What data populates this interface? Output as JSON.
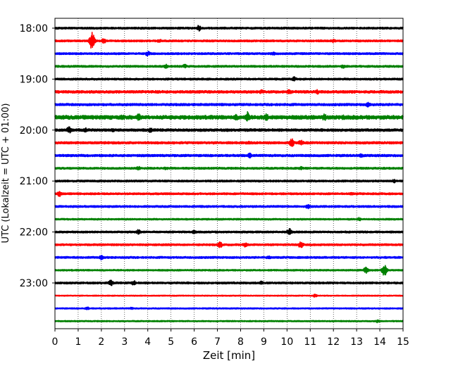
{
  "chart_data": {
    "type": "line",
    "title": "",
    "xlabel": "Zeit  [min]",
    "ylabel": "UTC (Lokalzeit = UTC + 01:00)",
    "xlim": [
      0,
      15
    ],
    "x_ticks": [
      "0",
      "1",
      "2",
      "3",
      "4",
      "5",
      "6",
      "7",
      "8",
      "9",
      "10",
      "11",
      "12",
      "13",
      "14",
      "15"
    ],
    "y_tick_labels": [
      "18:00",
      "19:00",
      "20:00",
      "21:00",
      "22:00",
      "23:00"
    ],
    "vertical_grid": "dotted",
    "series_color_cycle": [
      "#000000",
      "#ff0000",
      "#0000ff",
      "#008000"
    ],
    "traces": [
      {
        "time": "18:00",
        "color": "#000000",
        "amplitude": 0.15,
        "bursts": [
          {
            "x": 6.2,
            "amp": 0.5
          }
        ]
      },
      {
        "time": "18:15",
        "color": "#ff0000",
        "amplitude": 0.15,
        "bursts": [
          {
            "x": 1.6,
            "amp": 1.4
          },
          {
            "x": 2.1,
            "amp": 0.4
          },
          {
            "x": 4.5,
            "amp": 0.3
          },
          {
            "x": 12.0,
            "amp": 0.3
          }
        ]
      },
      {
        "time": "18:30",
        "color": "#0000ff",
        "amplitude": 0.15,
        "bursts": [
          {
            "x": 4.0,
            "amp": 0.4
          },
          {
            "x": 9.4,
            "amp": 0.3
          }
        ]
      },
      {
        "time": "18:45",
        "color": "#008000",
        "amplitude": 0.15,
        "bursts": [
          {
            "x": 4.8,
            "amp": 0.35
          },
          {
            "x": 5.6,
            "amp": 0.35
          },
          {
            "x": 12.4,
            "amp": 0.3
          }
        ]
      },
      {
        "time": "19:00",
        "color": "#000000",
        "amplitude": 0.15,
        "bursts": [
          {
            "x": 10.3,
            "amp": 0.4
          }
        ]
      },
      {
        "time": "19:15",
        "color": "#ff0000",
        "amplitude": 0.2,
        "bursts": [
          {
            "x": 8.9,
            "amp": 0.35
          },
          {
            "x": 10.1,
            "amp": 0.4
          },
          {
            "x": 11.3,
            "amp": 0.4
          }
        ]
      },
      {
        "time": "19:30",
        "color": "#0000ff",
        "amplitude": 0.18,
        "bursts": [
          {
            "x": 13.5,
            "amp": 0.4
          }
        ]
      },
      {
        "time": "19:45",
        "color": "#008000",
        "amplitude": 0.3,
        "bursts": [
          {
            "x": 2.9,
            "amp": 0.45
          },
          {
            "x": 3.6,
            "amp": 0.6
          },
          {
            "x": 7.8,
            "amp": 0.5
          },
          {
            "x": 8.3,
            "amp": 0.9
          },
          {
            "x": 9.1,
            "amp": 0.6
          },
          {
            "x": 11.6,
            "amp": 0.6
          },
          {
            "x": 12.4,
            "amp": 0.4
          }
        ]
      },
      {
        "time": "20:00",
        "color": "#000000",
        "amplitude": 0.2,
        "bursts": [
          {
            "x": 0.6,
            "amp": 0.6
          },
          {
            "x": 1.3,
            "amp": 0.4
          },
          {
            "x": 2.5,
            "amp": 0.3
          },
          {
            "x": 4.1,
            "amp": 0.4
          }
        ]
      },
      {
        "time": "20:15",
        "color": "#ff0000",
        "amplitude": 0.18,
        "bursts": [
          {
            "x": 10.2,
            "amp": 0.7
          },
          {
            "x": 10.6,
            "amp": 0.5
          },
          {
            "x": 8.4,
            "amp": 0.3
          }
        ]
      },
      {
        "time": "20:30",
        "color": "#0000ff",
        "amplitude": 0.18,
        "bursts": [
          {
            "x": 8.4,
            "amp": 0.4
          },
          {
            "x": 13.2,
            "amp": 0.35
          }
        ]
      },
      {
        "time": "20:45",
        "color": "#008000",
        "amplitude": 0.15,
        "bursts": [
          {
            "x": 4.8,
            "amp": 0.3
          },
          {
            "x": 3.6,
            "amp": 0.3
          },
          {
            "x": 10.6,
            "amp": 0.3
          }
        ]
      },
      {
        "time": "21:00",
        "color": "#000000",
        "amplitude": 0.15,
        "bursts": [
          {
            "x": 14.6,
            "amp": 0.3
          }
        ]
      },
      {
        "time": "21:15",
        "color": "#ff0000",
        "amplitude": 0.15,
        "bursts": [
          {
            "x": 0.2,
            "amp": 0.5
          },
          {
            "x": 12.8,
            "amp": 0.3
          }
        ]
      },
      {
        "time": "21:30",
        "color": "#0000ff",
        "amplitude": 0.15,
        "bursts": [
          {
            "x": 10.9,
            "amp": 0.4
          }
        ]
      },
      {
        "time": "21:45",
        "color": "#008000",
        "amplitude": 0.12,
        "bursts": [
          {
            "x": 13.1,
            "amp": 0.3
          }
        ]
      },
      {
        "time": "22:00",
        "color": "#000000",
        "amplitude": 0.15,
        "bursts": [
          {
            "x": 3.6,
            "amp": 0.4
          },
          {
            "x": 10.1,
            "amp": 0.6
          },
          {
            "x": 6.0,
            "amp": 0.3
          }
        ]
      },
      {
        "time": "22:15",
        "color": "#ff0000",
        "amplitude": 0.15,
        "bursts": [
          {
            "x": 7.1,
            "amp": 0.55
          },
          {
            "x": 8.2,
            "amp": 0.4
          },
          {
            "x": 10.6,
            "amp": 0.6
          }
        ]
      },
      {
        "time": "22:30",
        "color": "#0000ff",
        "amplitude": 0.15,
        "bursts": [
          {
            "x": 2.0,
            "amp": 0.4
          },
          {
            "x": 9.2,
            "amp": 0.3
          }
        ]
      },
      {
        "time": "22:45",
        "color": "#008000",
        "amplitude": 0.12,
        "bursts": [
          {
            "x": 13.4,
            "amp": 0.5
          },
          {
            "x": 14.2,
            "amp": 0.9
          }
        ]
      },
      {
        "time": "23:00",
        "color": "#000000",
        "amplitude": 0.15,
        "bursts": [
          {
            "x": 2.4,
            "amp": 0.5
          },
          {
            "x": 3.4,
            "amp": 0.4
          },
          {
            "x": 8.9,
            "amp": 0.3
          }
        ]
      },
      {
        "time": "23:15",
        "color": "#ff0000",
        "amplitude": 0.08,
        "bursts": [
          {
            "x": 11.2,
            "amp": 0.25
          }
        ]
      },
      {
        "time": "23:30",
        "color": "#0000ff",
        "amplitude": 0.1,
        "bursts": [
          {
            "x": 1.4,
            "amp": 0.25
          },
          {
            "x": 3.3,
            "amp": 0.2
          }
        ]
      },
      {
        "time": "23:45",
        "color": "#008000",
        "amplitude": 0.1,
        "bursts": [
          {
            "x": 13.9,
            "amp": 0.25
          }
        ]
      }
    ]
  }
}
